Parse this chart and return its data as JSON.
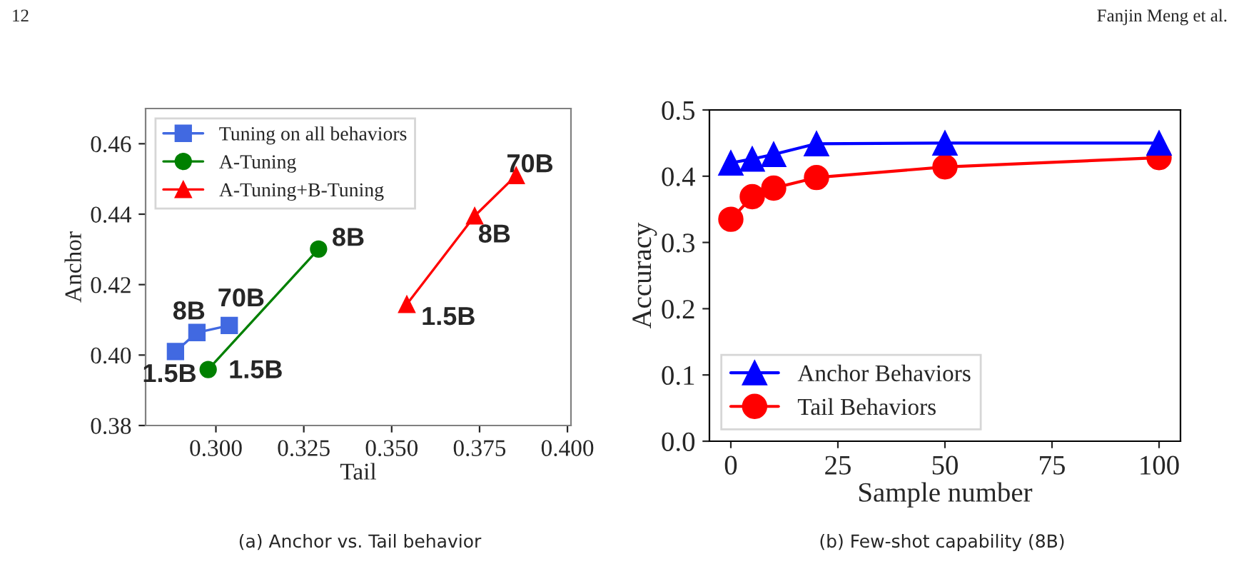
{
  "chart_data": [
    {
      "type": "line",
      "xlabel": "Tail",
      "ylabel": "Anchor",
      "xlim": [
        0.28,
        0.401
      ],
      "ylim": [
        0.38,
        0.47
      ],
      "xticks": [
        {
          "value": 0.3,
          "label": "0.300"
        },
        {
          "value": 0.325,
          "label": "0.325"
        },
        {
          "value": 0.35,
          "label": "0.350"
        },
        {
          "value": 0.375,
          "label": "0.375"
        },
        {
          "value": 0.4,
          "label": "0.400"
        }
      ],
      "yticks": [
        0.38,
        {
          "value": 0.4,
          "label": "0.40"
        },
        0.42,
        0.44,
        0.46
      ],
      "legend": "top left",
      "series": [
        {
          "name": "Tuning on all behaviors",
          "color": "#4169e1",
          "marker": "square",
          "x": [
            0.2885,
            0.2946,
            0.3038
          ],
          "values": [
            0.401,
            0.4064,
            0.4084
          ]
        },
        {
          "name": "A-Tuning",
          "color": "#008000",
          "marker": "circle",
          "x": [
            0.2978,
            0.3292
          ],
          "values": [
            0.3959,
            0.4301
          ]
        },
        {
          "name": "A-Tuning+B-Tuning",
          "color": "#ff0000",
          "marker": "triangle",
          "x": [
            0.3543,
            0.3736,
            0.3854
          ],
          "values": [
            0.4144,
            0.4395,
            0.451
          ]
        }
      ],
      "annotations": [
        {
          "text": "1.5B",
          "x": 0.2885,
          "y": 0.401
        },
        {
          "text": "8B",
          "x": 0.2946,
          "y": 0.4064
        },
        {
          "text": "70B",
          "x": 0.3038,
          "y": 0.4084
        },
        {
          "text": "1.5B",
          "x": 0.2978,
          "y": 0.3959
        },
        {
          "text": "8B",
          "x": 0.3292,
          "y": 0.4301
        },
        {
          "text": "1.5B",
          "x": 0.3543,
          "y": 0.4144
        },
        {
          "text": "8B",
          "x": 0.3736,
          "y": 0.4395
        },
        {
          "text": "70B",
          "x": 0.3854,
          "y": 0.451
        },
        "12",
        "(a) Anchor vs. Tail behavior"
      ]
    },
    {
      "type": "line",
      "xlabel": "Sample number",
      "ylabel": "Accuracy",
      "xlim": [
        -5,
        105
      ],
      "ylim": [
        0,
        0.5
      ],
      "xticks": [
        0,
        25,
        50,
        75,
        100
      ],
      "yticks": [
        {
          "value": 0,
          "label": "0.0"
        },
        0.1,
        0.2,
        0.3,
        0.4,
        0.5
      ],
      "legend": "bottom left",
      "x": [
        0,
        5,
        10,
        20,
        50,
        100
      ],
      "series": [
        {
          "name": "Anchor Behaviors",
          "color": "#0000ff",
          "marker": "triangle",
          "values": [
            0.42,
            0.426,
            0.433,
            0.449,
            0.45,
            0.45
          ]
        },
        {
          "name": "Tail Behaviors",
          "color": "#ff0000",
          "marker": "circle",
          "values": [
            0.335,
            0.369,
            0.382,
            0.398,
            0.414,
            0.428
          ]
        }
      ],
      "annotations": [
        "Fanjin Meng et al.",
        "(b) Few-shot capability (8B)"
      ]
    }
  ]
}
